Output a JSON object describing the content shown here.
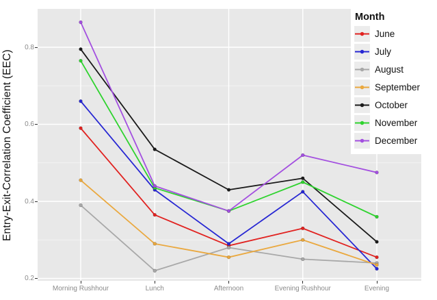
{
  "chart_data": {
    "type": "line",
    "title": "",
    "xlabel": "",
    "ylabel": "Entry-Exit-Correlation Coefficient (EEC)",
    "categories": [
      "Morning Rushhour",
      "Lunch",
      "Afternoon",
      "Evening Rushhour",
      "Evening"
    ],
    "series": [
      {
        "name": "June",
        "color": "#e12220",
        "values": [
          0.59,
          0.365,
          0.285,
          0.33,
          0.255
        ]
      },
      {
        "name": "July",
        "color": "#2727d3",
        "values": [
          0.66,
          0.43,
          0.29,
          0.425,
          0.225
        ]
      },
      {
        "name": "August",
        "color": "#a8a8a8",
        "values": [
          0.39,
          0.22,
          0.28,
          0.25,
          0.24
        ]
      },
      {
        "name": "September",
        "color": "#eaa83e",
        "values": [
          0.455,
          0.29,
          0.255,
          0.3,
          0.235
        ]
      },
      {
        "name": "October",
        "color": "#1a1a1a",
        "values": [
          0.795,
          0.535,
          0.43,
          0.46,
          0.295
        ]
      },
      {
        "name": "November",
        "color": "#2ed32e",
        "values": [
          0.765,
          0.435,
          0.375,
          0.45,
          0.36
        ]
      },
      {
        "name": "December",
        "color": "#a34fe0",
        "values": [
          0.865,
          0.44,
          0.375,
          0.52,
          0.475
        ]
      }
    ],
    "legend": {
      "title": "Month",
      "position": "top-right"
    },
    "y_ticks": [
      0.2,
      0.4,
      0.6,
      0.8
    ],
    "y_minor_ticks": [
      0.3,
      0.5,
      0.7
    ],
    "ylim": [
      0.194,
      0.9
    ],
    "grid": true,
    "panel_bg": "#e8e8e8",
    "grid_color": "#ffffff",
    "tick_label_color": "#8a8a8a"
  }
}
